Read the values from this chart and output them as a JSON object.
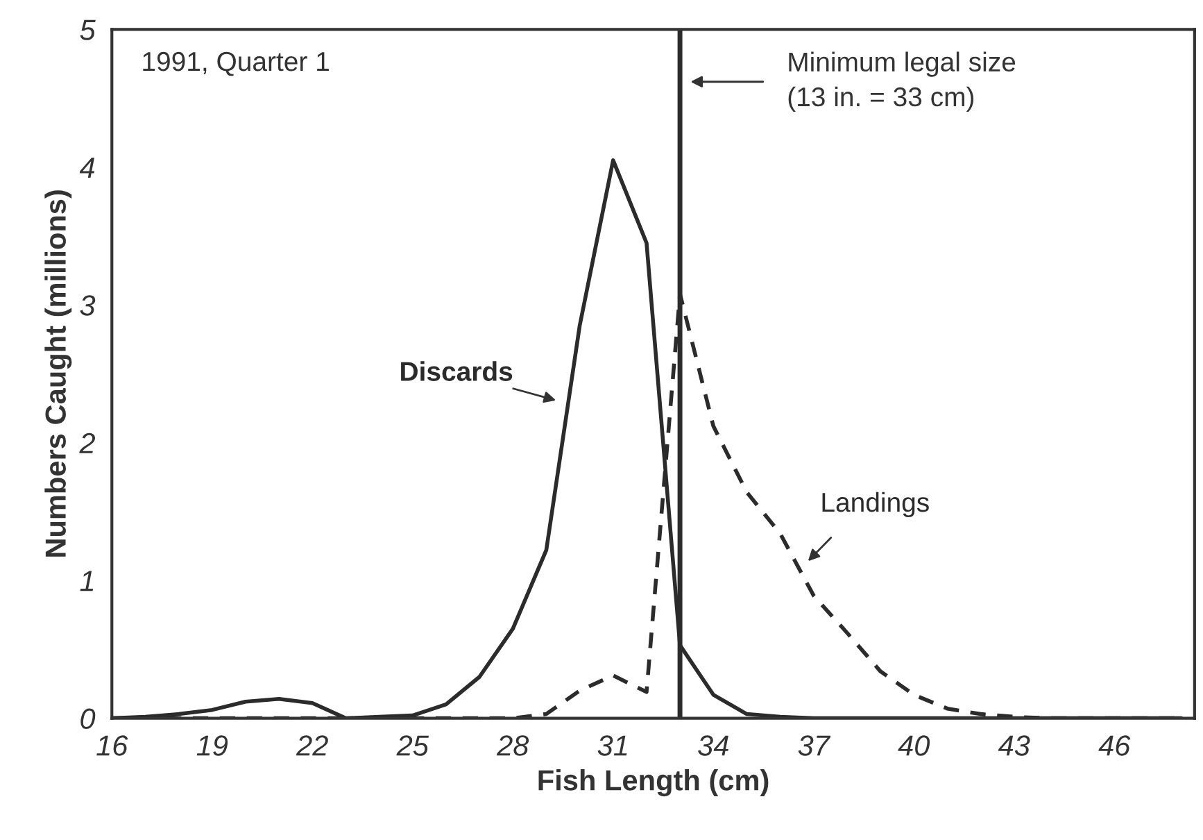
{
  "chart_data": {
    "type": "line",
    "xlabel": "Fish Length (cm)",
    "ylabel": "Numbers Caught (millions)",
    "annotations": [
      "1991, Quarter 1"
    ],
    "x": [
      16,
      17,
      18,
      19,
      20,
      21,
      22,
      23,
      24,
      25,
      26,
      27,
      28,
      29,
      30,
      31,
      32,
      33,
      34,
      35,
      36,
      37,
      38,
      39,
      40,
      41,
      42,
      43,
      44,
      45,
      46,
      47,
      48
    ],
    "series": [
      {
        "name": "Discards",
        "color": "#2b2b2b",
        "line_style": "solid",
        "values": [
          0,
          0.01,
          0.03,
          0.06,
          0.12,
          0.14,
          0.11,
          0,
          0.01,
          0.02,
          0.1,
          0.3,
          0.65,
          1.22,
          2.85,
          4.05,
          3.45,
          0.53,
          0.17,
          0.03,
          0.01,
          0,
          0,
          0,
          0,
          0,
          0,
          0,
          0,
          0,
          0,
          0,
          0
        ]
      },
      {
        "name": "Landings",
        "color": "#2b2b2b",
        "line_style": "dashed",
        "values": [
          0,
          0,
          0,
          0,
          0,
          0,
          0,
          0,
          0,
          0,
          0,
          0,
          0,
          0.03,
          0.2,
          0.31,
          0.19,
          3.08,
          2.12,
          1.64,
          1.34,
          0.89,
          0.62,
          0.34,
          0.17,
          0.07,
          0.03,
          0.01,
          0,
          0,
          0,
          0,
          0
        ]
      }
    ],
    "ref_lines": [
      {
        "axis": "x",
        "value": 33,
        "label": "Minimum legal size\n(13 in. = 33 cm)",
        "color": "#2b2b2b",
        "line_style": "solid"
      }
    ],
    "xlim": [
      16,
      48.4
    ],
    "ylim": [
      0,
      5
    ],
    "xticks": [
      16,
      19,
      22,
      25,
      28,
      31,
      34,
      37,
      40,
      43,
      46
    ],
    "yticks": [
      0,
      1,
      2,
      3,
      4,
      5
    ],
    "grid": false,
    "legend": false,
    "marker": "none"
  }
}
